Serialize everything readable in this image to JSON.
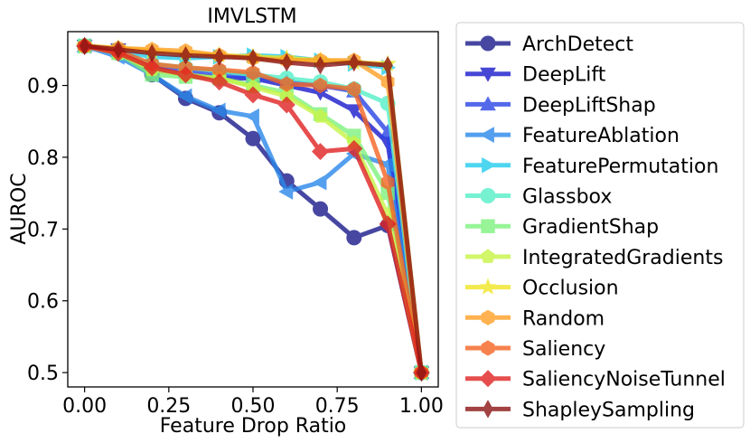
{
  "chart_data": {
    "type": "line",
    "title": "IMVLSTM",
    "xlabel": "Feature Drop Ratio",
    "ylabel": "AUROC",
    "xlim": [
      -0.05,
      1.05
    ],
    "ylim": [
      0.48,
      0.975
    ],
    "xticks": [
      0.0,
      0.25,
      0.5,
      0.75,
      1.0
    ],
    "xtick_labels": [
      "0.00",
      "0.25",
      "0.50",
      "0.75",
      "1.00"
    ],
    "yticks": [
      0.5,
      0.6,
      0.7,
      0.8,
      0.9
    ],
    "ytick_labels": [
      "0.5",
      "0.6",
      "0.7",
      "0.8",
      "0.9"
    ],
    "grid": false,
    "legend_position": "outside-right",
    "x": [
      0.0,
      0.1,
      0.2,
      0.3,
      0.4,
      0.5,
      0.6,
      0.7,
      0.8,
      0.9,
      1.0
    ],
    "series": [
      {
        "name": "ArchDetect",
        "color": "#1a1a8c",
        "marker": "circle",
        "values": [
          0.955,
          0.945,
          0.915,
          0.882,
          0.862,
          0.826,
          0.767,
          0.728,
          0.688,
          0.705,
          0.5
        ]
      },
      {
        "name": "DeepLift",
        "color": "#1a1acc",
        "marker": "triangle-down",
        "values": [
          0.955,
          0.95,
          0.922,
          0.915,
          0.91,
          0.91,
          0.9,
          0.89,
          0.865,
          0.82,
          0.5
        ]
      },
      {
        "name": "DeepLiftShap",
        "color": "#2a44e6",
        "marker": "triangle-up",
        "values": [
          0.955,
          0.948,
          0.925,
          0.92,
          0.915,
          0.912,
          0.905,
          0.9,
          0.892,
          0.835,
          0.5
        ]
      },
      {
        "name": "FeatureAblation",
        "color": "#2a88ea",
        "marker": "triangle-left",
        "values": [
          0.955,
          0.94,
          0.915,
          0.885,
          0.865,
          0.857,
          0.752,
          0.765,
          0.805,
          0.79,
          0.5
        ]
      },
      {
        "name": "FeaturePermutation",
        "color": "#22ccee",
        "marker": "triangle-right",
        "values": [
          0.955,
          0.948,
          0.94,
          0.938,
          0.94,
          0.942,
          0.94,
          0.935,
          0.93,
          0.925,
          0.5
        ]
      },
      {
        "name": "Glassbox",
        "color": "#55f0c8",
        "marker": "circle",
        "values": [
          0.955,
          0.945,
          0.93,
          0.925,
          0.92,
          0.915,
          0.91,
          0.905,
          0.895,
          0.875,
          0.5
        ]
      },
      {
        "name": "GradientShap",
        "color": "#7ef27e",
        "marker": "square",
        "values": [
          0.955,
          0.945,
          0.915,
          0.912,
          0.91,
          0.9,
          0.89,
          0.86,
          0.83,
          0.75,
          0.5
        ]
      },
      {
        "name": "IntegratedGradients",
        "color": "#c8f545",
        "marker": "pentagon",
        "values": [
          0.955,
          0.945,
          0.922,
          0.915,
          0.91,
          0.898,
          0.885,
          0.857,
          0.82,
          0.72,
          0.5
        ]
      },
      {
        "name": "Occlusion",
        "color": "#f0e622",
        "marker": "star",
        "values": [
          0.955,
          0.952,
          0.948,
          0.945,
          0.942,
          0.94,
          0.938,
          0.935,
          0.932,
          0.93,
          0.5
        ]
      },
      {
        "name": "Random",
        "color": "#ffa024",
        "marker": "hexagon",
        "values": [
          0.955,
          0.952,
          0.95,
          0.948,
          0.942,
          0.938,
          0.935,
          0.935,
          0.935,
          0.905,
          0.5
        ]
      },
      {
        "name": "Saliency",
        "color": "#f56422",
        "marker": "hexagon",
        "values": [
          0.955,
          0.948,
          0.93,
          0.925,
          0.922,
          0.918,
          0.902,
          0.9,
          0.895,
          0.765,
          0.5
        ]
      },
      {
        "name": "SaliencyNoiseTunnel",
        "color": "#e02222",
        "marker": "diamond",
        "values": [
          0.955,
          0.945,
          0.925,
          0.915,
          0.905,
          0.887,
          0.873,
          0.808,
          0.812,
          0.707,
          0.5
        ]
      },
      {
        "name": "ShapleySampling",
        "color": "#8c1414",
        "marker": "thin-diamond",
        "values": [
          0.955,
          0.95,
          0.945,
          0.942,
          0.94,
          0.938,
          0.932,
          0.928,
          0.932,
          0.928,
          0.5
        ]
      }
    ]
  }
}
